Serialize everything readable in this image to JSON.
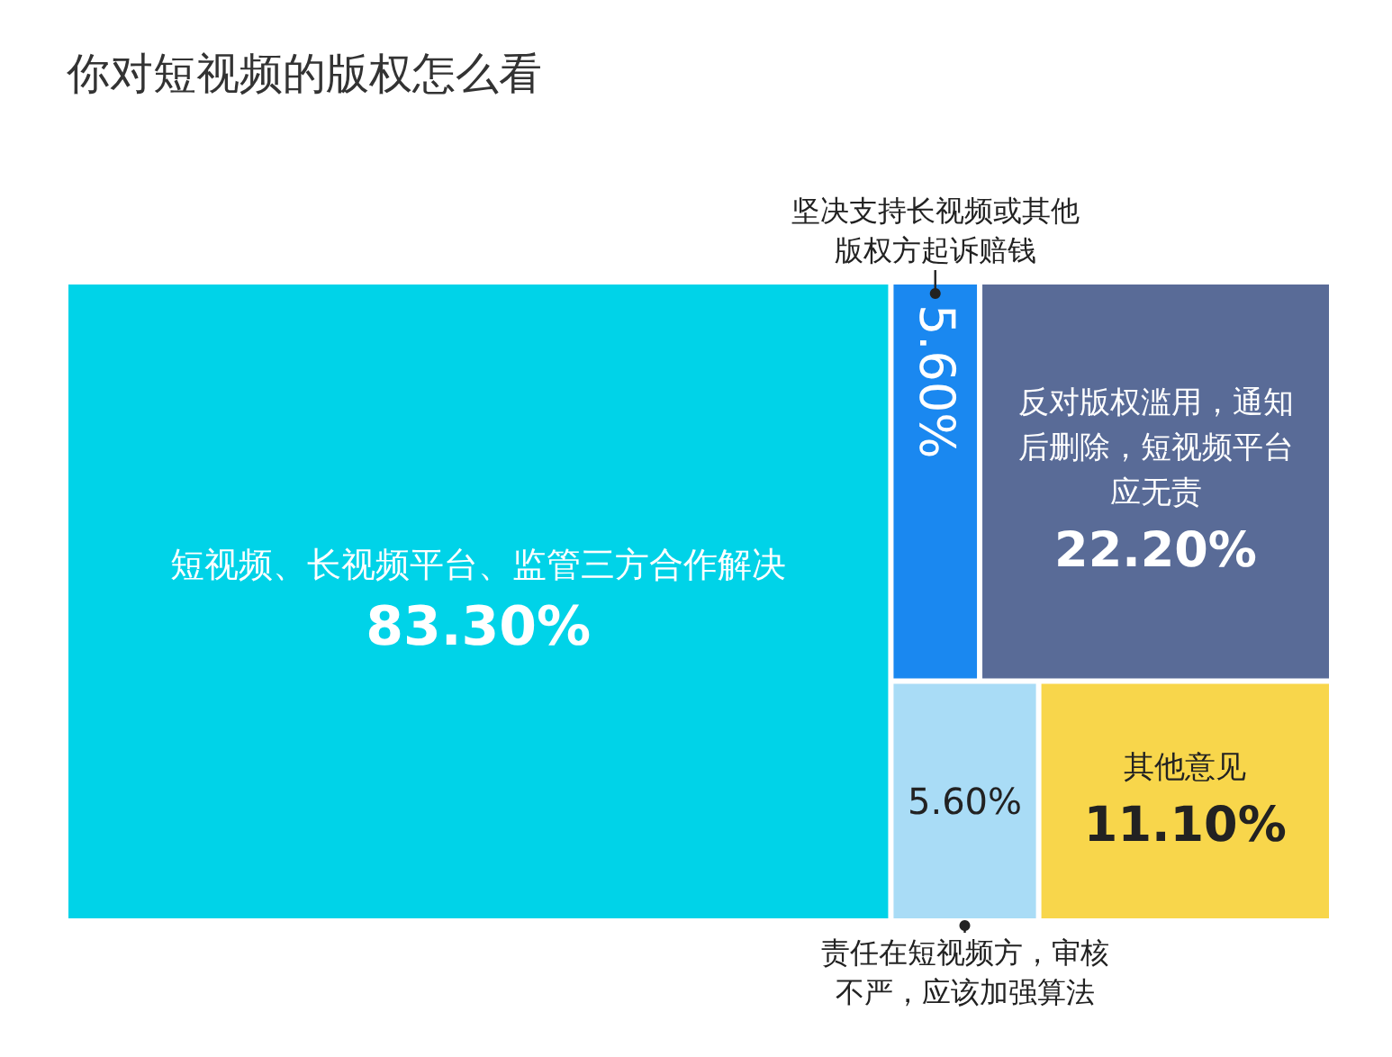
{
  "chart_data": {
    "type": "other",
    "title": "你对短视频的版权怎么看",
    "categories": [
      "短视频、长视频平台、监管三方合作解决",
      "坚决支持长视频或其他版权方起诉赔钱",
      "反对版权滥用，通知后删除，短视频平台应无责",
      "责任在短视频方，审核不严，应该加强算法",
      "其他意见"
    ],
    "values": [
      83.3,
      5.6,
      22.2,
      5.6,
      11.1
    ],
    "value_labels": [
      "83.30%",
      "5.60%",
      "22.20%",
      "5.60%",
      "11.10%"
    ],
    "colors": [
      "#00d3e8",
      "#1a88f0",
      "#596b97",
      "#a9dcf6",
      "#f8d64b"
    ]
  }
}
